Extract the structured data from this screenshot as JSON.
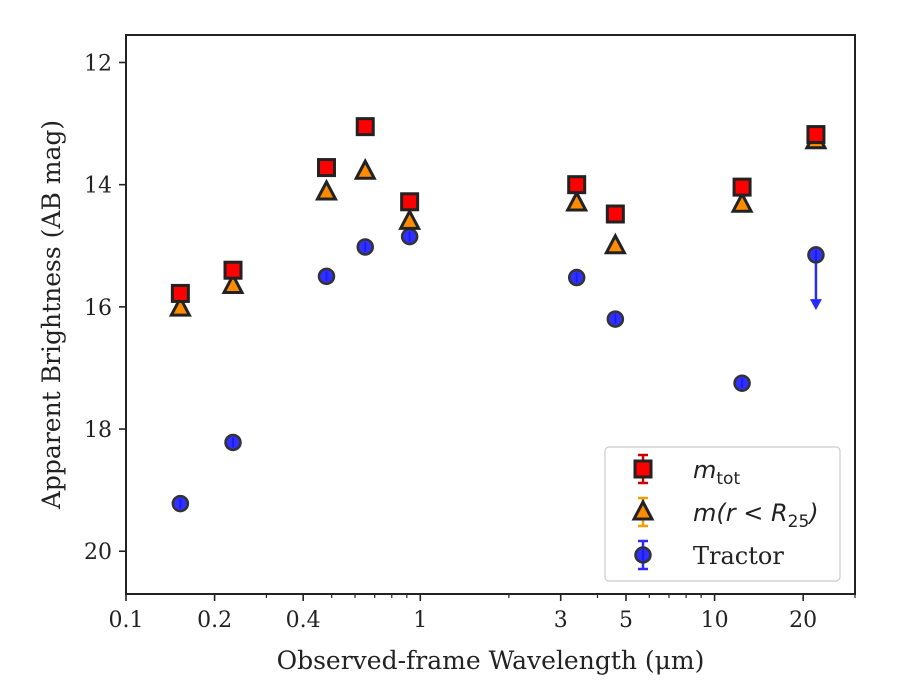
{
  "chart_data": {
    "type": "scatter",
    "title": "",
    "xlabel": "Observed-frame Wavelength (μm)",
    "ylabel": "Apparent Brightness (AB mag)",
    "xscale": "log",
    "xlim": [
      0.1,
      30
    ],
    "ylim": [
      20.7,
      11.55
    ],
    "y_inverted": true,
    "xticks": [
      {
        "value": 0.1,
        "label": "0.1"
      },
      {
        "value": 0.2,
        "label": "0.2"
      },
      {
        "value": 0.4,
        "label": "0.4"
      },
      {
        "value": 1,
        "label": "1"
      },
      {
        "value": 3,
        "label": "3"
      },
      {
        "value": 5,
        "label": "5"
      },
      {
        "value": 10,
        "label": "10"
      },
      {
        "value": 20,
        "label": "20"
      }
    ],
    "yticks": [
      {
        "value": 12,
        "label": "12"
      },
      {
        "value": 14,
        "label": "14"
      },
      {
        "value": 16,
        "label": "16"
      },
      {
        "value": 18,
        "label": "18"
      },
      {
        "value": 20,
        "label": "20"
      }
    ],
    "grid": false,
    "legend_position": "bottom-right",
    "series": [
      {
        "name": "m_tot",
        "legend": {
          "base": "m",
          "sub": "tot"
        },
        "marker": "square",
        "color": "#ff0000",
        "edge_color": "#222222",
        "errbar_color": "#cc0000",
        "x": [
          0.153,
          0.231,
          0.48,
          0.65,
          0.92,
          3.4,
          4.6,
          12.4,
          22.1
        ],
        "y": [
          15.78,
          15.4,
          13.72,
          13.05,
          14.28,
          14.0,
          14.48,
          14.04,
          13.18
        ]
      },
      {
        "name": "m(r < R_25)",
        "legend": {
          "base": "m(r < R",
          "sub": "25",
          "tail": ")"
        },
        "marker": "triangle",
        "color": "#ff8c00",
        "edge_color": "#222222",
        "errbar_color": "#f0a000",
        "x": [
          0.153,
          0.231,
          0.48,
          0.65,
          0.92,
          3.4,
          4.6,
          12.4,
          22.1
        ],
        "y": [
          16.02,
          15.65,
          14.12,
          13.78,
          14.6,
          14.3,
          15.0,
          14.32,
          13.28
        ]
      },
      {
        "name": "Tractor",
        "legend": {
          "base": "Tractor"
        },
        "marker": "circle",
        "color": "#1a1aff",
        "edge_color": "#333333",
        "errbar_color": "#2a2aff",
        "x": [
          0.153,
          0.231,
          0.48,
          0.65,
          0.92,
          3.4,
          4.6,
          12.4,
          22.1
        ],
        "y": [
          19.22,
          18.22,
          15.5,
          15.02,
          14.85,
          15.52,
          16.2,
          17.25,
          15.15
        ],
        "upper_limit_index": 8,
        "upper_limit_to": 16.02
      }
    ]
  }
}
